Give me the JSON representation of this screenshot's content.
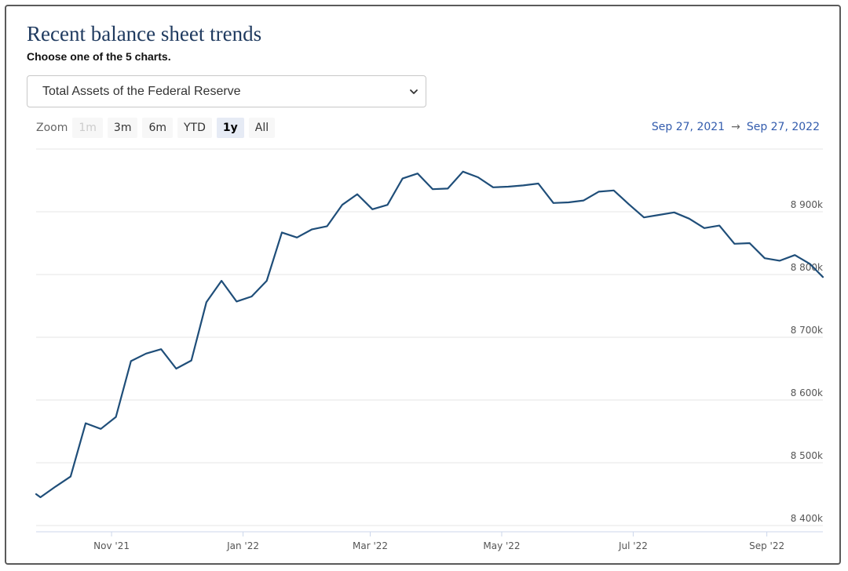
{
  "page": {
    "title": "Recent balance sheet trends",
    "subtitle": "Choose one of the 5 charts.",
    "select": {
      "value": "Total Assets of the Federal Reserve"
    }
  },
  "zoom": {
    "label": "Zoom",
    "buttons": [
      {
        "label": "1m",
        "state": "disabled"
      },
      {
        "label": "3m",
        "state": "normal"
      },
      {
        "label": "6m",
        "state": "normal"
      },
      {
        "label": "YTD",
        "state": "normal"
      },
      {
        "label": "1y",
        "state": "active"
      },
      {
        "label": "All",
        "state": "normal"
      }
    ]
  },
  "range": {
    "from": "Sep 27, 2021",
    "arrow": "→",
    "to": "Sep 27, 2022"
  },
  "colors": {
    "line": "#1f4e79",
    "grid": "#e6e6e6",
    "title": "#1f3a5f",
    "range": "#335cad"
  },
  "chart_data": {
    "type": "line",
    "title": "",
    "xlabel": "",
    "ylabel": "",
    "x_ticks": [
      {
        "label": "Nov '21",
        "date": "2021-11-01"
      },
      {
        "label": "Jan '22",
        "date": "2022-01-01"
      },
      {
        "label": "Mar '22",
        "date": "2022-03-01"
      },
      {
        "label": "May '22",
        "date": "2022-05-01"
      },
      {
        "label": "Jul '22",
        "date": "2022-07-01"
      },
      {
        "label": "Sep '22",
        "date": "2022-09-01"
      }
    ],
    "y_ticks": [
      {
        "label": "8 400k",
        "value": 8400000
      },
      {
        "label": "8 500k",
        "value": 8500000
      },
      {
        "label": "8 600k",
        "value": 8600000
      },
      {
        "label": "8 700k",
        "value": 8700000
      },
      {
        "label": "8 800k",
        "value": 8800000
      },
      {
        "label": "8 900k",
        "value": 8900000
      }
    ],
    "xlim": [
      "2021-09-27",
      "2022-09-27"
    ],
    "ylim": [
      8400000,
      9000000
    ],
    "grid": true,
    "series": [
      {
        "x": [
          "2021-09-27",
          "2021-09-29",
          "2021-10-06",
          "2021-10-13",
          "2021-10-20",
          "2021-10-27",
          "2021-11-03",
          "2021-11-10",
          "2021-11-17",
          "2021-11-24",
          "2021-12-01",
          "2021-12-08",
          "2021-12-15",
          "2021-12-22",
          "2021-12-29",
          "2022-01-05",
          "2022-01-12",
          "2022-01-19",
          "2022-01-26",
          "2022-02-02",
          "2022-02-09",
          "2022-02-16",
          "2022-02-23",
          "2022-03-02",
          "2022-03-09",
          "2022-03-16",
          "2022-03-23",
          "2022-03-30",
          "2022-04-06",
          "2022-04-13",
          "2022-04-20",
          "2022-04-27",
          "2022-05-04",
          "2022-05-11",
          "2022-05-18",
          "2022-05-25",
          "2022-06-01",
          "2022-06-08",
          "2022-06-15",
          "2022-06-22",
          "2022-06-29",
          "2022-07-06",
          "2022-07-13",
          "2022-07-20",
          "2022-07-27",
          "2022-08-03",
          "2022-08-10",
          "2022-08-17",
          "2022-08-24",
          "2022-08-31",
          "2022-09-07",
          "2022-09-14",
          "2022-09-21",
          "2022-09-27"
        ],
        "values": [
          8450000,
          8445000,
          8462000,
          8478000,
          8563000,
          8554000,
          8573000,
          8662000,
          8674000,
          8681000,
          8650000,
          8663000,
          8756000,
          8790000,
          8757000,
          8765000,
          8790000,
          8867000,
          8859000,
          8872000,
          8877000,
          8911000,
          8928000,
          8904000,
          8911000,
          8953000,
          8961000,
          8936000,
          8937000,
          8964000,
          8955000,
          8939000,
          8940000,
          8942000,
          8945000,
          8914000,
          8915000,
          8918000,
          8932000,
          8934000,
          8912000,
          8891000,
          8895000,
          8899000,
          8889000,
          8874000,
          8878000,
          8849000,
          8850000,
          8826000,
          8822000,
          8831000,
          8817000,
          8796000
        ]
      }
    ]
  }
}
